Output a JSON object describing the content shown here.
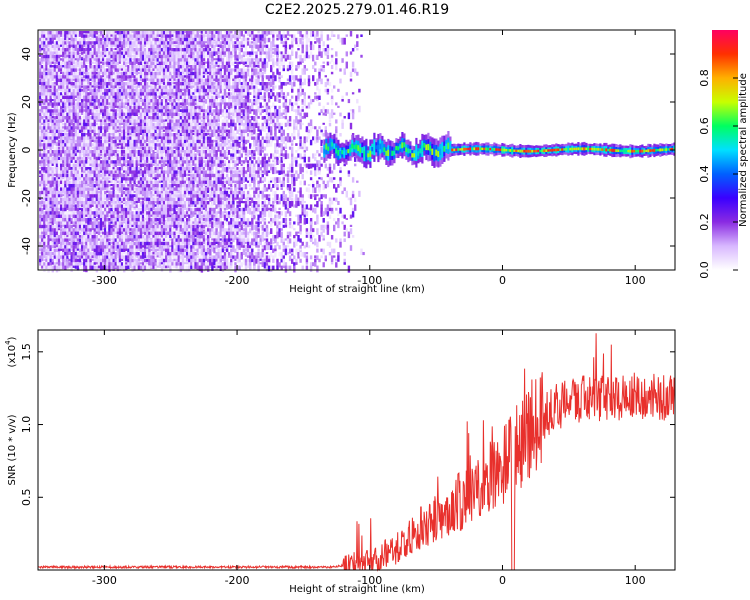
{
  "title": "C2E2.2025.279.01.46.R19",
  "colors": {
    "snr_line": "#e8302c",
    "noise_dot": "#7a2cf0",
    "axes": "#000000",
    "background": "#ffffff"
  },
  "chart_data": [
    {
      "type": "heatmap",
      "name": "spectrogram",
      "xlabel": "Height of straight line (km)",
      "ylabel": "Frequency (Hz)",
      "xlim": [
        -350,
        130
      ],
      "ylim": [
        -50,
        50
      ],
      "xticks": [
        -300,
        -200,
        -100,
        0,
        100
      ],
      "xtick_labels": [
        "-300",
        "-200",
        "-100",
        "0",
        "100"
      ],
      "yticks": [
        40,
        20,
        0,
        -20,
        -40
      ],
      "ytick_labels": [
        "40",
        "20",
        "0",
        "-20",
        "-40"
      ],
      "signal_onset_km": -135,
      "noise_cutoff_km": -105,
      "signal_center_hz": 0,
      "colorbar": {
        "label": "Normalized spectral amplitude",
        "range": [
          0,
          1
        ],
        "ticks": [
          0.0,
          0.2,
          0.4,
          0.6,
          0.8
        ],
        "tick_labels": [
          "0.0",
          "0.2",
          "0.4",
          "0.6",
          "0.8"
        ],
        "colormap": [
          "#ffffff",
          "#d8b8ff",
          "#8a2be2",
          "#3a00ff",
          "#0060ff",
          "#00e0ff",
          "#00ff60",
          "#c8ff00",
          "#ffb000",
          "#ff3000",
          "#ff0060"
        ]
      }
    },
    {
      "type": "line",
      "name": "snr",
      "xlabel": "Height of straight line (km)",
      "ylabel": "SNR (10 * v/v)",
      "scale_label": "(x10",
      "scale_exponent": "4",
      "xlim": [
        -350,
        130
      ],
      "ylim": [
        0,
        1.65
      ],
      "xticks": [
        -300,
        -200,
        -100,
        0,
        100
      ],
      "xtick_labels": [
        "-300",
        "-200",
        "-100",
        "0",
        "100"
      ],
      "yticks": [
        0.5,
        1.0,
        1.5
      ],
      "ytick_labels": [
        "0.5",
        "1.0",
        "1.5"
      ],
      "trend_x": [
        -350,
        -130,
        -100,
        -80,
        -60,
        -40,
        -20,
        0,
        20,
        40,
        60,
        80,
        100,
        130
      ],
      "trend_y": [
        0.02,
        0.02,
        0.05,
        0.15,
        0.3,
        0.42,
        0.55,
        0.72,
        0.95,
        1.12,
        1.18,
        1.18,
        1.2,
        1.18
      ]
    }
  ]
}
